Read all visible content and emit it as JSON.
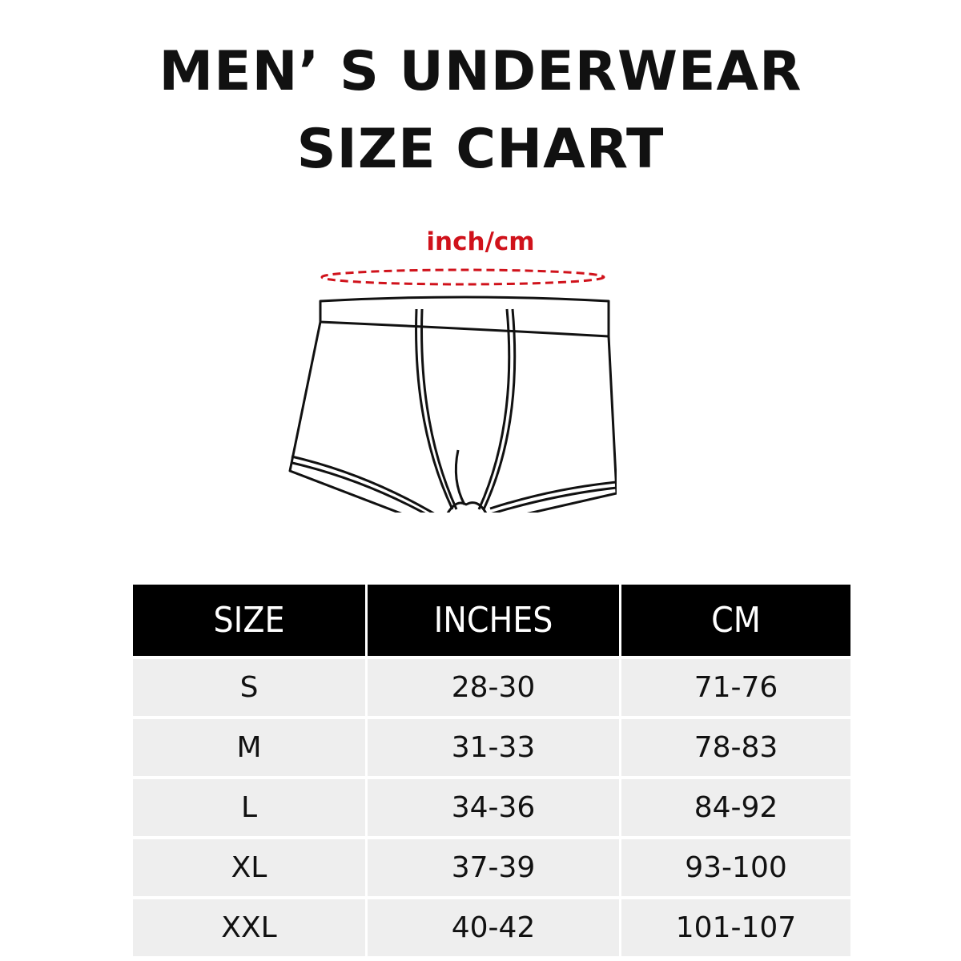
{
  "title": {
    "line1": "MEN’ S UNDERWEAR",
    "line2": "SIZE CHART"
  },
  "illustration": {
    "unit_label": "inch/cm",
    "measure_color": "#d0121b",
    "icon": "boxer-briefs-outline"
  },
  "table": {
    "headers": [
      "SIZE",
      "INCHES",
      "CM"
    ],
    "rows": [
      [
        "S",
        "28-30",
        "71-76"
      ],
      [
        "M",
        "31-33",
        "78-83"
      ],
      [
        "L",
        "34-36",
        "84-92"
      ],
      [
        "XL",
        "37-39",
        "93-100"
      ],
      [
        "XXL",
        "40-42",
        "101-107"
      ]
    ]
  }
}
